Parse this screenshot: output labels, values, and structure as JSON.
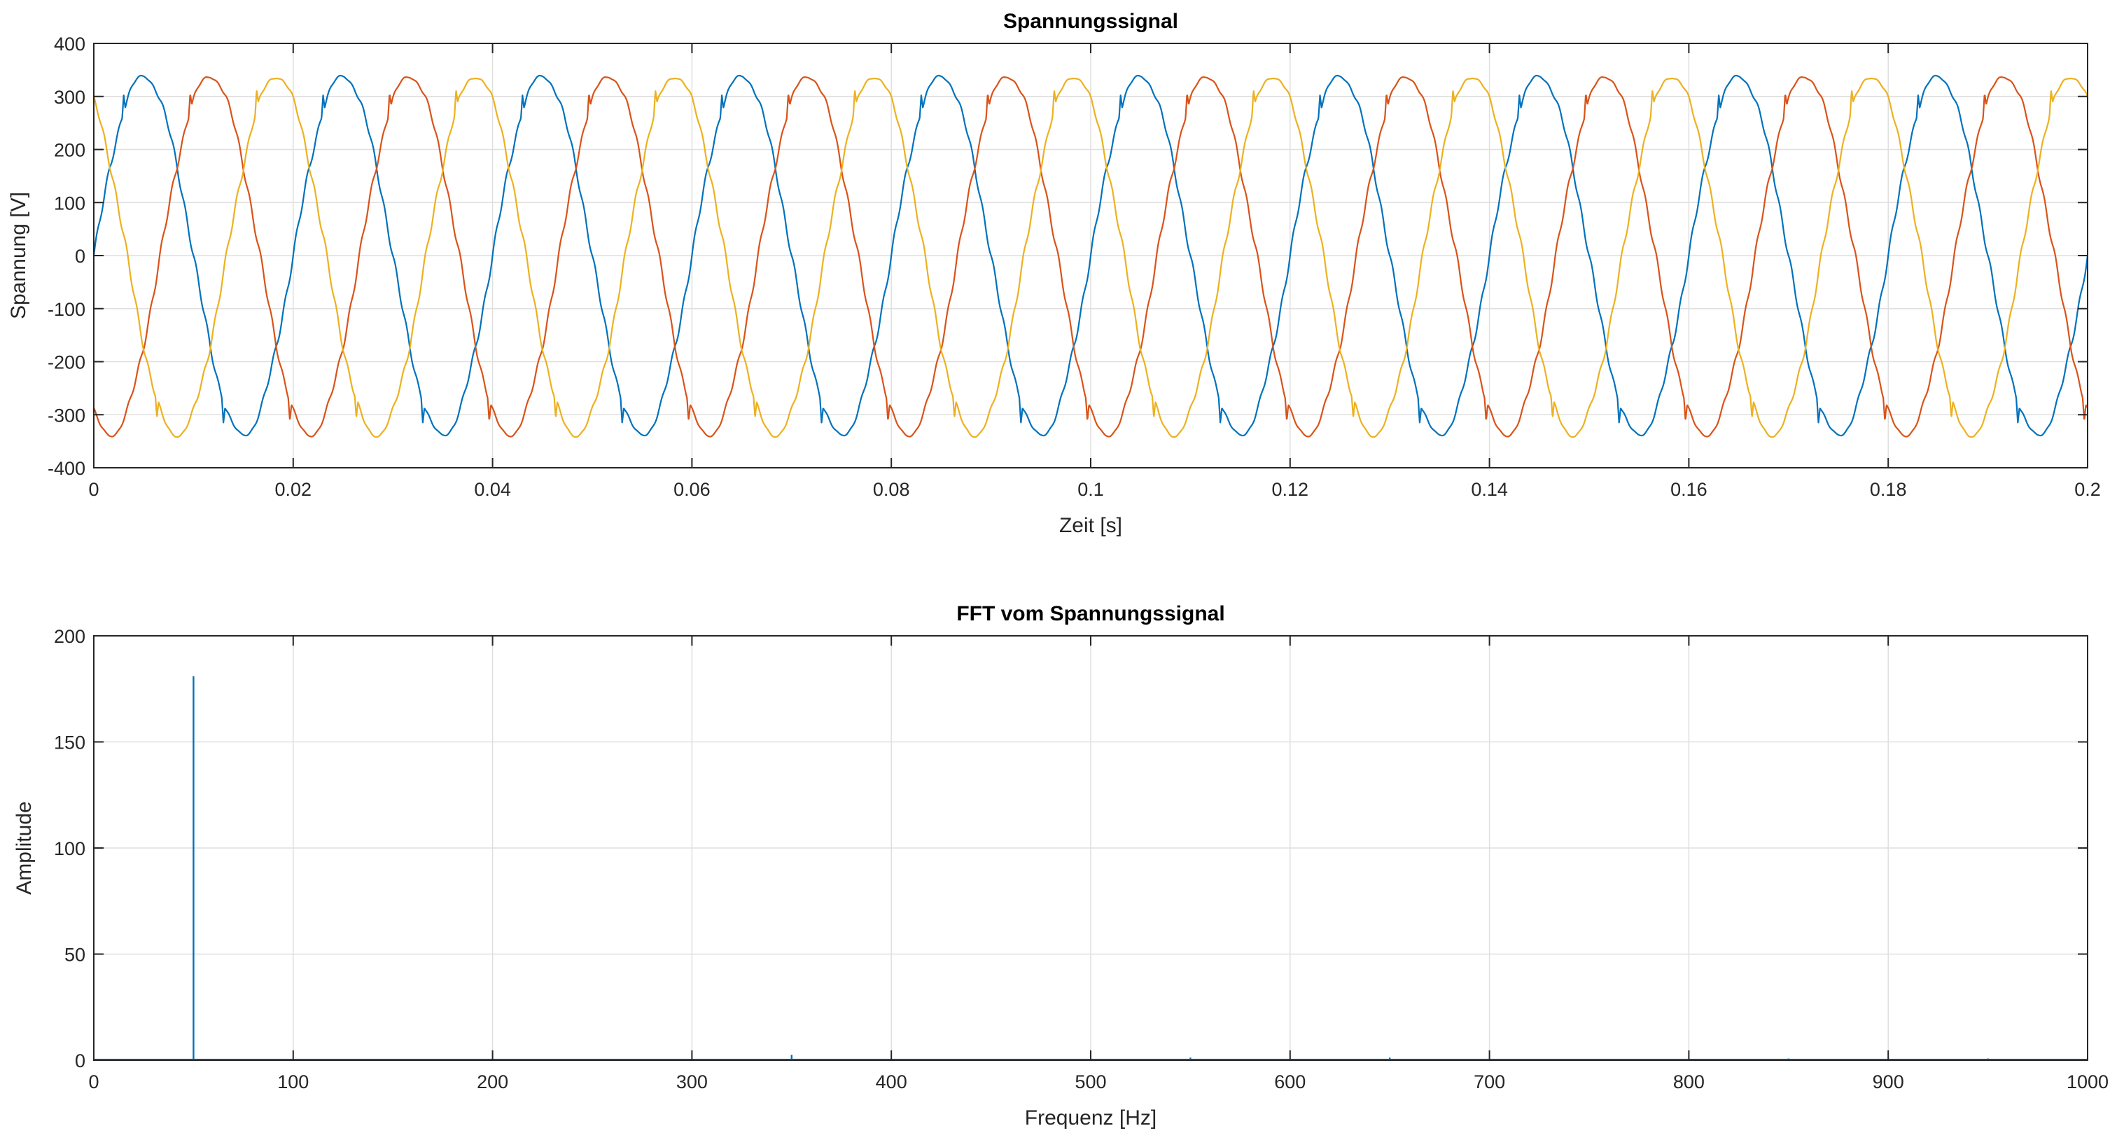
{
  "chart_data": [
    {
      "type": "line",
      "title": "Spannungssignal",
      "xlabel": "Zeit [s]",
      "ylabel": "Spannung [V]",
      "xlim": [
        0,
        0.2
      ],
      "ylim": [
        -400,
        400
      ],
      "xticks": [
        0,
        0.02,
        0.04,
        0.06,
        0.08,
        0.1,
        0.12,
        0.14,
        0.16,
        0.18,
        0.2
      ],
      "xtick_labels": [
        "0",
        "0.02",
        "0.04",
        "0.06",
        "0.08",
        "0.1",
        "0.12",
        "0.14",
        "0.16",
        "0.18",
        "0.2"
      ],
      "yticks": [
        -400,
        -300,
        -200,
        -100,
        0,
        100,
        200,
        300,
        400
      ],
      "ytick_labels": [
        "-400",
        "-300",
        "-200",
        "-100",
        "0",
        "100",
        "200",
        "300",
        "400"
      ],
      "grid": true,
      "signal": {
        "frequency_hz": 50,
        "amplitude_v": 338,
        "spike_v": 35
      },
      "series": [
        {
          "phase_deg": 0,
          "color": "#0072BD"
        },
        {
          "phase_deg": -120,
          "color": "#D95319"
        },
        {
          "phase_deg": 120,
          "color": "#EDB120"
        }
      ]
    },
    {
      "type": "line",
      "title": "FFT vom Spannungssignal",
      "xlabel": "Frequenz [Hz]",
      "ylabel": "Amplitude",
      "xlim": [
        0,
        1000
      ],
      "ylim": [
        0,
        200
      ],
      "xticks": [
        0,
        100,
        200,
        300,
        400,
        500,
        600,
        700,
        800,
        900,
        1000
      ],
      "xtick_labels": [
        "0",
        "100",
        "200",
        "300",
        "400",
        "500",
        "600",
        "700",
        "800",
        "900",
        "1000"
      ],
      "yticks": [
        0,
        50,
        100,
        150,
        200
      ],
      "ytick_labels": [
        "0",
        "50",
        "100",
        "150",
        "200"
      ],
      "grid": true,
      "color": "#0072BD",
      "peaks": [
        {
          "x": 50,
          "y": 181
        },
        {
          "x": 350,
          "y": 2.5
        },
        {
          "x": 550,
          "y": 1.2
        },
        {
          "x": 650,
          "y": 1.2
        },
        {
          "x": 850,
          "y": 0.8
        },
        {
          "x": 950,
          "y": 0.8
        }
      ]
    }
  ]
}
